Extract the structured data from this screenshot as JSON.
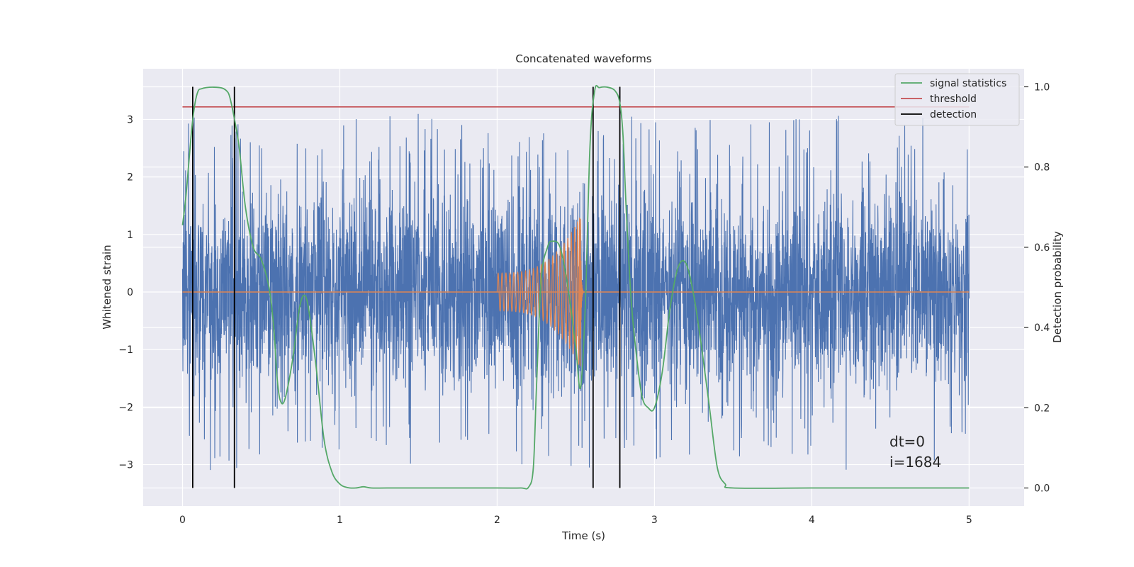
{
  "chart_data": {
    "type": "line",
    "title": "Concatenated waveforms",
    "xlabel": "Time (s)",
    "ylabel": "Whitened strain",
    "y2label": "Detection probability",
    "xlim": [
      -0.25,
      5.35
    ],
    "ylim": [
      -3.72,
      3.88
    ],
    "y2lim": [
      -0.045,
      1.045
    ],
    "x_ticks": [
      0,
      1,
      2,
      3,
      4,
      5
    ],
    "x_tick_labels": [
      "0",
      "1",
      "2",
      "3",
      "4",
      "5"
    ],
    "y_ticks": [
      -3,
      -2,
      -1,
      0,
      1,
      2,
      3
    ],
    "y_tick_labels": [
      "−3",
      "−2",
      "−1",
      "0",
      "1",
      "2",
      "3"
    ],
    "y2_ticks": [
      0.0,
      0.2,
      0.4,
      0.6,
      0.8,
      1.0
    ],
    "y2_tick_labels": [
      "0.0",
      "0.2",
      "0.4",
      "0.6",
      "0.8",
      "1.0"
    ],
    "grid": true,
    "legend_position": "top-right",
    "legend": [
      {
        "label": "signal statistics",
        "color": "#55a868"
      },
      {
        "label": "threshold",
        "color": "#c44e52"
      },
      {
        "label": "detection",
        "color": "#000000"
      }
    ],
    "annotation": [
      "dt=0",
      "i=1684"
    ],
    "strain": {
      "color": "#4c72b0",
      "x_range": [
        0,
        5
      ],
      "n_samples": 4096,
      "typical_amplitude": 1.35,
      "peak_max": 3.5,
      "peak_min": -3.4
    },
    "injected_signal": {
      "color": "#dd8452",
      "start": 2.0,
      "merger": 2.53,
      "amp_start": 0.33,
      "amp_peak": 1.35,
      "baseline_range": [
        0,
        5
      ]
    },
    "signal_statistics": {
      "x": [
        0.0,
        0.02,
        0.04,
        0.06,
        0.08,
        0.1,
        0.12,
        0.15,
        0.2,
        0.25,
        0.28,
        0.3,
        0.33,
        0.36,
        0.4,
        0.45,
        0.5,
        0.55,
        0.58,
        0.6,
        0.62,
        0.65,
        0.7,
        0.74,
        0.77,
        0.8,
        0.85,
        0.9,
        0.95,
        1.0,
        1.05,
        1.1,
        1.15,
        1.2,
        1.3,
        1.5,
        2.0,
        2.15,
        2.2,
        2.23,
        2.25,
        2.28,
        2.32,
        2.35,
        2.4,
        2.45,
        2.5,
        2.53,
        2.56,
        2.59,
        2.62,
        2.65,
        2.7,
        2.75,
        2.78,
        2.8,
        2.82,
        2.85,
        2.88,
        2.92,
        2.96,
        3.0,
        3.05,
        3.1,
        3.15,
        3.2,
        3.25,
        3.3,
        3.35,
        3.4,
        3.45,
        3.5,
        4.0,
        4.5,
        5.0
      ],
      "y": [
        0.655,
        0.72,
        0.81,
        0.9,
        0.96,
        0.99,
        0.995,
        0.998,
        0.999,
        0.997,
        0.99,
        0.975,
        0.92,
        0.85,
        0.7,
        0.6,
        0.57,
        0.5,
        0.4,
        0.28,
        0.22,
        0.22,
        0.32,
        0.44,
        0.48,
        0.45,
        0.3,
        0.12,
        0.04,
        0.01,
        0.001,
        0.0,
        0.003,
        0.0,
        0.0,
        0.0,
        0.0,
        0.0,
        0.002,
        0.05,
        0.25,
        0.52,
        0.6,
        0.615,
        0.6,
        0.5,
        0.35,
        0.25,
        0.45,
        0.85,
        0.99,
        0.998,
        0.999,
        0.99,
        0.96,
        0.88,
        0.7,
        0.48,
        0.35,
        0.23,
        0.2,
        0.2,
        0.29,
        0.45,
        0.55,
        0.56,
        0.48,
        0.35,
        0.2,
        0.05,
        0.01,
        0.0,
        0.0,
        0.0,
        0.0
      ]
    },
    "threshold": {
      "value": 0.95,
      "x_range": [
        0,
        5
      ]
    },
    "detections": [
      0.065,
      0.33,
      2.61,
      2.78
    ]
  }
}
